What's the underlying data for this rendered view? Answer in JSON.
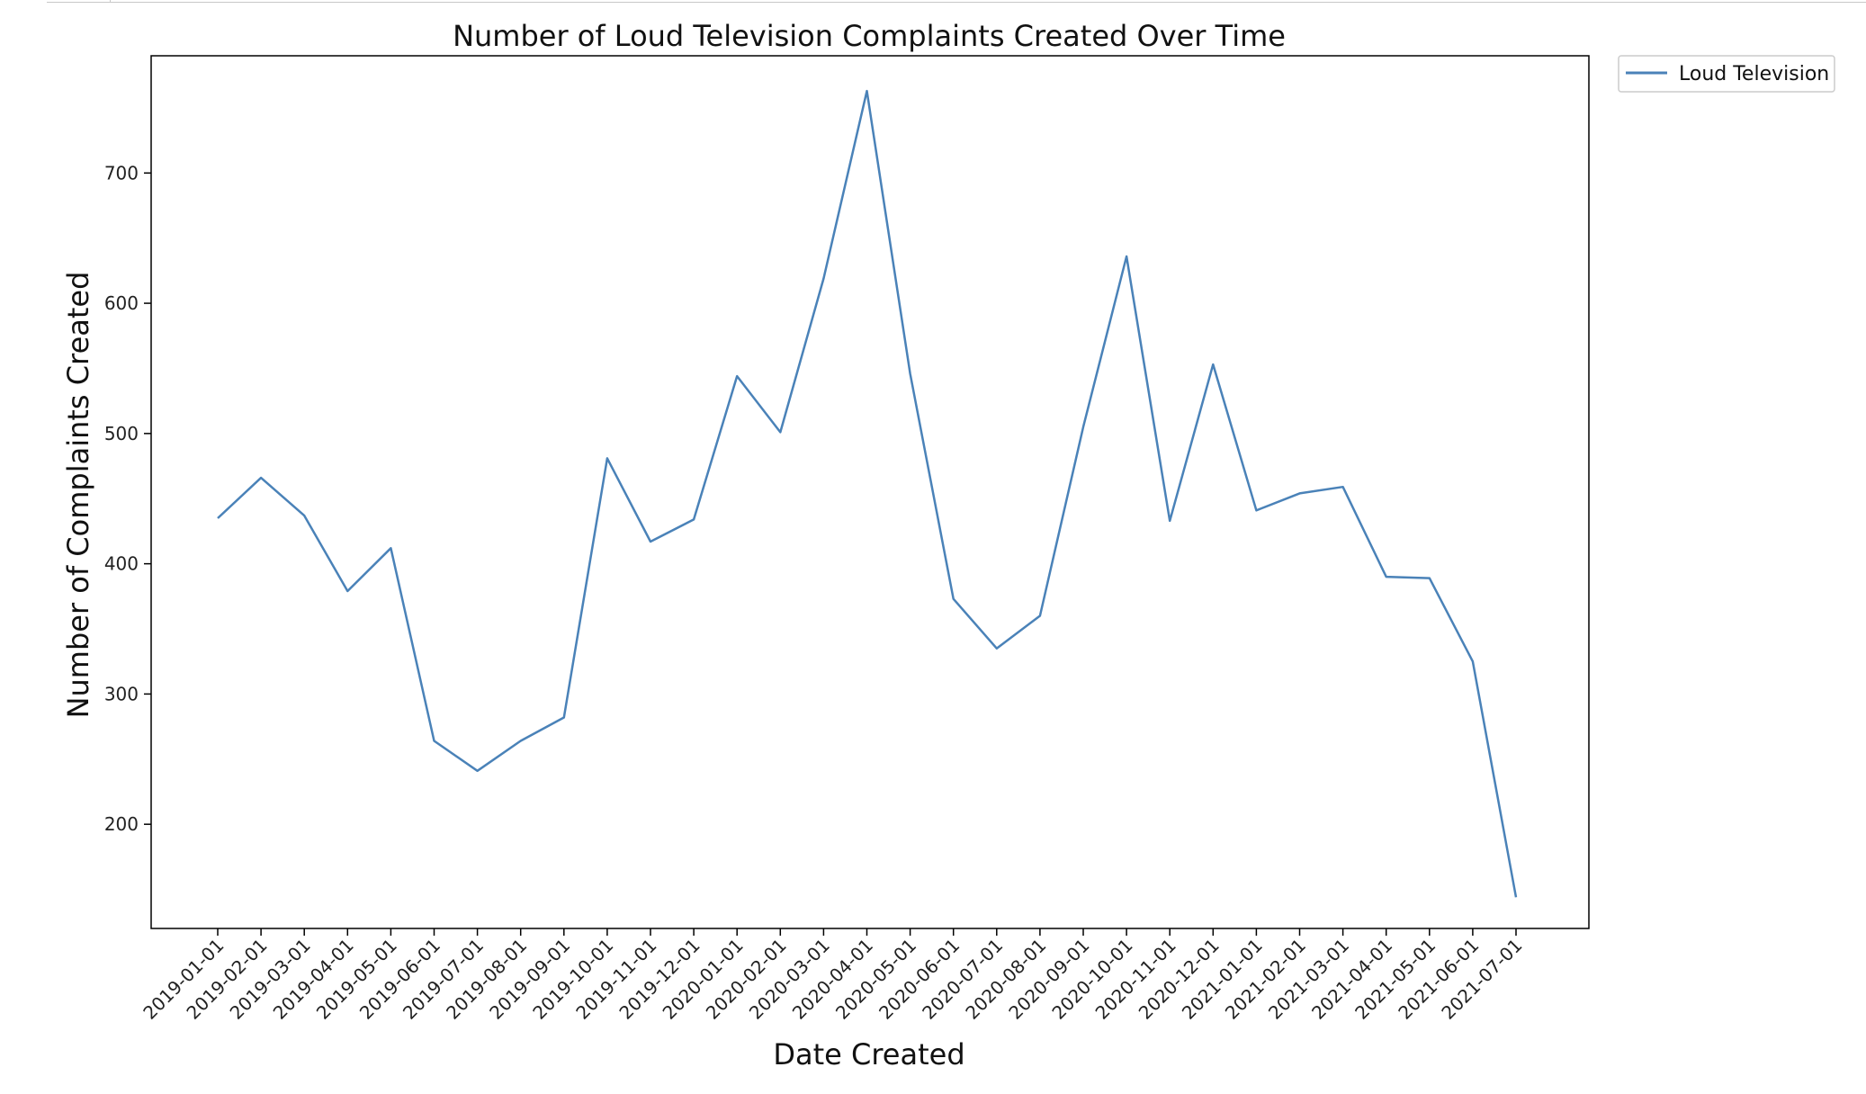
{
  "chart_data": {
    "type": "line",
    "title": "Number of Loud Television Complaints Created Over Time",
    "xlabel": "Date Created",
    "ylabel": "Number of Complaints Created",
    "x": [
      "2019-01-01",
      "2019-02-01",
      "2019-03-01",
      "2019-04-01",
      "2019-05-01",
      "2019-06-01",
      "2019-07-01",
      "2019-08-01",
      "2019-09-01",
      "2019-10-01",
      "2019-11-01",
      "2019-12-01",
      "2020-01-01",
      "2020-02-01",
      "2020-03-01",
      "2020-04-01",
      "2020-05-01",
      "2020-06-01",
      "2020-07-01",
      "2020-08-01",
      "2020-09-01",
      "2020-10-01",
      "2020-11-01",
      "2020-12-01",
      "2021-01-01",
      "2021-02-01",
      "2021-03-01",
      "2021-04-01",
      "2021-05-01",
      "2021-06-01",
      "2021-07-01"
    ],
    "series": [
      {
        "name": "Loud Television",
        "color": "#4a82b8",
        "values": [
          435,
          466,
          437,
          379,
          412,
          264,
          241,
          264,
          282,
          481,
          417,
          434,
          544,
          501,
          619,
          763,
          546,
          373,
          335,
          360,
          505,
          636,
          433,
          553,
          441,
          454,
          459,
          390,
          389,
          325,
          144
        ]
      }
    ],
    "yticks": [
      200,
      300,
      400,
      500,
      600,
      700
    ],
    "ylim": [
      120,
      790
    ],
    "grid": false,
    "legend": "upper-left-outside"
  }
}
